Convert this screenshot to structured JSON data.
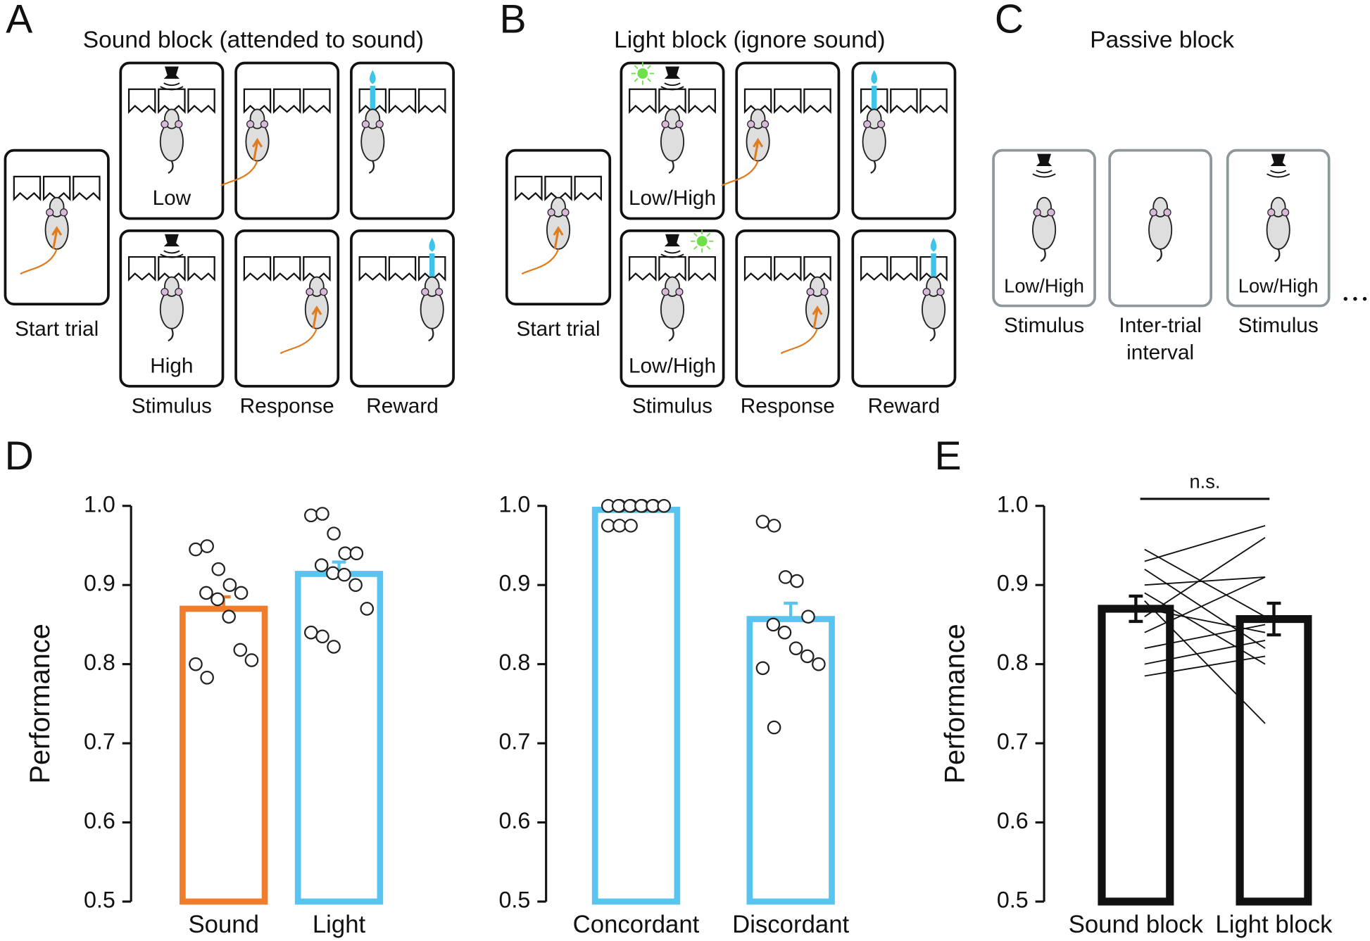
{
  "diagram": {
    "panels": [
      {
        "label": "A",
        "title": "Sound block (attended to sound)",
        "start": "Start trial",
        "stimulus_texts": [
          "Low",
          "High"
        ],
        "captions": [
          "Stimulus",
          "Response",
          "Reward"
        ]
      },
      {
        "label": "B",
        "title": "Light block (ignore sound)",
        "start": "Start trial",
        "stimulus_texts": [
          "Low/High",
          "Low/High"
        ],
        "captions": [
          "Stimulus",
          "Response",
          "Reward"
        ]
      },
      {
        "label": "C",
        "title": "Passive block",
        "box_texts": [
          "Low/High",
          "Low/High"
        ],
        "captions": [
          [
            "Stimulus"
          ],
          [
            "Inter-trial",
            "interval"
          ],
          [
            "Stimulus"
          ]
        ]
      }
    ]
  },
  "chart_data": [
    {
      "type": "bar",
      "label": "D",
      "ylabel": "Performance",
      "categories": [
        "Sound",
        "Light"
      ],
      "values": [
        0.87,
        0.914
      ],
      "errors": [
        0.015,
        0.015
      ],
      "error_bars": "upper",
      "colors": [
        "#f07d2b",
        "#5ac4f0"
      ],
      "points": [
        [
          0.945,
          0.949,
          0.92,
          0.9,
          0.89,
          0.89,
          0.882,
          0.86,
          0.818,
          0.805,
          0.8,
          0.783
        ],
        [
          0.988,
          0.99,
          0.965,
          0.94,
          0.94,
          0.925,
          0.915,
          0.913,
          0.9,
          0.87,
          0.84,
          0.835,
          0.822
        ]
      ],
      "ylim": [
        0.5,
        1.0
      ],
      "yticks": [
        0.5,
        0.6,
        0.7,
        0.8,
        0.9,
        {
          "value": 1,
          "label": "1.0"
        }
      ]
    },
    {
      "type": "bar",
      "categories": [
        "Concordant",
        "Discordant"
      ],
      "values": [
        0.995,
        0.857
      ],
      "errors": [
        0.003,
        0.02
      ],
      "error_bars": "upper",
      "colors": [
        "#5ac4f0",
        "#5ac4f0"
      ],
      "points": [
        [
          1.0,
          1.0,
          1.0,
          1.0,
          1.0,
          1.0,
          1.0,
          1.0,
          1.0,
          1.0,
          0.975,
          0.975,
          0.975
        ],
        [
          0.98,
          0.975,
          0.91,
          0.905,
          0.86,
          0.85,
          0.84,
          0.82,
          0.81,
          0.8,
          0.795,
          0.72
        ]
      ],
      "ylim": [
        0.5,
        1.0
      ],
      "yticks": [
        0.5,
        0.6,
        0.7,
        0.8,
        0.9,
        {
          "value": 1,
          "label": "1.0"
        }
      ]
    },
    {
      "type": "bar",
      "label": "E",
      "ylabel": "Performance",
      "categories": [
        "Sound block",
        "Light block"
      ],
      "values": [
        0.87,
        0.857
      ],
      "errors": [
        0.016,
        0.02
      ],
      "error_bars": "both",
      "colors": [
        "#111111",
        "#111111"
      ],
      "subject_values": [
        [
          0.945,
          0.86
        ],
        [
          0.93,
          0.975
        ],
        [
          0.92,
          0.82
        ],
        [
          0.9,
          0.91
        ],
        [
          0.89,
          0.8
        ],
        [
          0.88,
          0.725
        ],
        [
          0.87,
          0.84
        ],
        [
          0.86,
          0.96
        ],
        [
          0.84,
          0.91
        ],
        [
          0.82,
          0.85
        ],
        [
          0.8,
          0.83
        ],
        [
          0.785,
          0.81
        ]
      ],
      "annotation": "n.s.",
      "ylim": [
        0.5,
        1.0
      ],
      "yticks": [
        0.5,
        0.6,
        0.7,
        0.8,
        0.9,
        {
          "value": 1,
          "label": "1.0"
        }
      ]
    }
  ]
}
